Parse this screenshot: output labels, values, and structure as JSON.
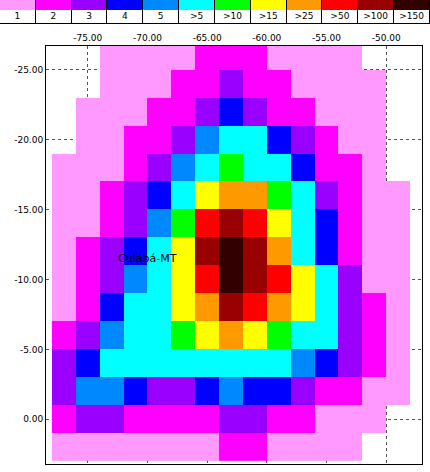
{
  "chart_data": {
    "type": "heatmap",
    "color_classes": [
      {
        "label": "1",
        "value": 1,
        "color": "#ff99ff"
      },
      {
        "label": "2",
        "value": 2,
        "color": "#ff00ff"
      },
      {
        "label": "3",
        "value": 3,
        "color": "#9900ff"
      },
      {
        "label": "4",
        "value": 4,
        "color": "#0000ff"
      },
      {
        "label": "5",
        "value": 5,
        "color": "#0088ff"
      },
      {
        "label": ">5",
        "value": 5,
        "color": "#00ffff"
      },
      {
        "label": ">10",
        "value": 10,
        "color": "#00ff00"
      },
      {
        "label": ">15",
        "value": 15,
        "color": "#ffff00"
      },
      {
        "label": ">25",
        "value": 25,
        "color": "#ff9900"
      },
      {
        "label": ">50",
        "value": 50,
        "color": "#ff0000"
      },
      {
        "label": ">100",
        "value": 100,
        "color": "#990000"
      },
      {
        "label": ">150",
        "value": 150,
        "color": "#330000"
      }
    ],
    "x": [
      -77,
      -75,
      -73,
      -71,
      -69,
      -67,
      -65,
      -63,
      -61,
      -59,
      -57,
      -55,
      -53,
      -51,
      -49
    ],
    "y": [
      -26,
      -24,
      -22,
      -20,
      -18,
      -16,
      -14,
      -12,
      -10,
      -8,
      -6,
      -4,
      -2,
      0,
      2
    ],
    "z": [
      [
        0,
        0,
        1,
        1,
        1,
        1,
        2,
        2,
        2,
        1,
        1,
        1,
        1,
        0,
        0
      ],
      [
        0,
        0,
        1,
        1,
        1,
        2,
        2,
        3,
        2,
        2,
        1,
        1,
        1,
        1,
        0
      ],
      [
        0,
        1,
        1,
        1,
        2,
        2,
        3,
        4,
        3,
        2,
        2,
        1,
        1,
        1,
        0
      ],
      [
        0,
        1,
        1,
        2,
        2,
        3,
        5,
        8,
        6,
        4,
        3,
        2,
        1,
        1,
        0
      ],
      [
        1,
        1,
        1,
        2,
        3,
        5,
        8,
        12,
        10,
        6,
        4,
        2,
        2,
        1,
        0
      ],
      [
        1,
        1,
        2,
        3,
        4,
        8,
        20,
        40,
        30,
        12,
        6,
        3,
        2,
        1,
        1
      ],
      [
        1,
        1,
        2,
        3,
        5,
        12,
        60,
        120,
        80,
        20,
        8,
        4,
        2,
        1,
        1
      ],
      [
        1,
        2,
        3,
        4,
        6,
        20,
        110,
        160,
        120,
        30,
        10,
        4,
        2,
        1,
        1
      ],
      [
        1,
        2,
        3,
        5,
        8,
        20,
        80,
        200,
        140,
        60,
        20,
        6,
        3,
        1,
        1
      ],
      [
        1,
        2,
        4,
        6,
        10,
        18,
        40,
        110,
        70,
        40,
        18,
        8,
        3,
        2,
        1
      ],
      [
        2,
        3,
        5,
        8,
        10,
        12,
        18,
        30,
        20,
        15,
        10,
        6,
        3,
        2,
        1
      ],
      [
        3,
        4,
        6,
        6,
        6,
        6,
        8,
        10,
        8,
        6,
        5,
        4,
        3,
        2,
        1
      ],
      [
        3,
        5,
        5,
        4,
        3,
        3,
        4,
        5,
        4,
        4,
        3,
        2,
        2,
        1,
        1
      ],
      [
        2,
        3,
        3,
        2,
        2,
        2,
        2,
        3,
        3,
        2,
        2,
        1,
        1,
        1,
        0
      ],
      [
        1,
        1,
        1,
        1,
        1,
        1,
        1,
        2,
        2,
        1,
        1,
        1,
        1,
        0,
        0
      ]
    ],
    "xlim": [
      -78.5,
      -47
    ],
    "xticks": [
      {
        "value": -75,
        "label": "-75.00"
      },
      {
        "value": -70,
        "label": "-70.00"
      },
      {
        "value": -65,
        "label": "-65.00"
      },
      {
        "value": -60,
        "label": "-60.00"
      },
      {
        "value": -55,
        "label": "-55.00"
      },
      {
        "value": -50,
        "label": "-50.00"
      }
    ],
    "ylim": [
      -26.7,
      3.2
    ],
    "yticks": [
      {
        "value": -25,
        "label": "-25.00"
      },
      {
        "value": -20,
        "label": "-20.00"
      },
      {
        "value": -15,
        "label": "-15.00"
      },
      {
        "value": -10,
        "label": "-10.00"
      },
      {
        "value": -5,
        "label": "-5.00"
      },
      {
        "value": 0,
        "label": "0.00"
      }
    ],
    "grid": true,
    "annotations": [
      {
        "text": "Cuiabá-MT",
        "x": -70,
        "y": -11.5
      }
    ]
  }
}
